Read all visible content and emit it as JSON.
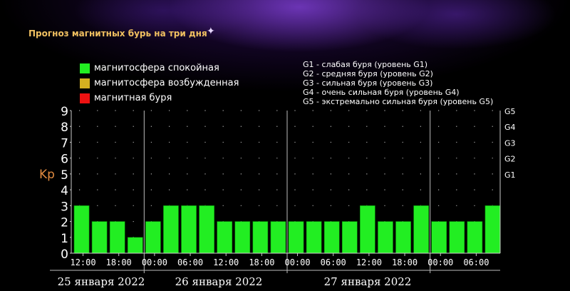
{
  "title": "Прогноз магнитных бурь на три дня",
  "legend": [
    {
      "label": "магнитосфера спокойная",
      "color": "#22ee22"
    },
    {
      "label": "магнитосфера возбужденная",
      "color": "#d4b020"
    },
    {
      "label": "магнитная буря",
      "color": "#ee1111"
    }
  ],
  "storm_levels": [
    "G1 - слабая буря (уровень G1)",
    "G2 - средняя буря (уровень G2)",
    "G3 - сильная буря (уровень G3)",
    "G4 - очень сильная буря (уровень G4)",
    "G5 - экстремально сильная буря (уровень G5)"
  ],
  "chart_data": {
    "type": "bar",
    "ylabel": "Kp",
    "ylim": [
      0,
      9
    ],
    "yticks": [
      "0",
      "1",
      "2",
      "3",
      "4",
      "5",
      "6",
      "7",
      "8",
      "9"
    ],
    "right_ticks": [
      {
        "label": "G1",
        "value": 5
      },
      {
        "label": "G2",
        "value": 6
      },
      {
        "label": "G3",
        "value": 7
      },
      {
        "label": "G4",
        "value": 8
      },
      {
        "label": "G5",
        "value": 9
      }
    ],
    "x_tick_labels": [
      "12:00",
      "18:00",
      "00:00",
      "06:00",
      "12:00",
      "18:00",
      "00:00",
      "06:00",
      "12:00",
      "18:00",
      "00:00",
      "06:00"
    ],
    "day_labels": [
      "25 января 2022",
      "26 января 2022",
      "27 января 2022"
    ],
    "values": [
      3,
      2,
      2,
      1,
      2,
      3,
      3,
      3,
      2,
      2,
      2,
      2,
      2,
      2,
      2,
      2,
      3,
      2,
      2,
      3,
      2,
      2,
      2,
      3
    ],
    "bar_color": "#22ee22",
    "grid": true
  }
}
